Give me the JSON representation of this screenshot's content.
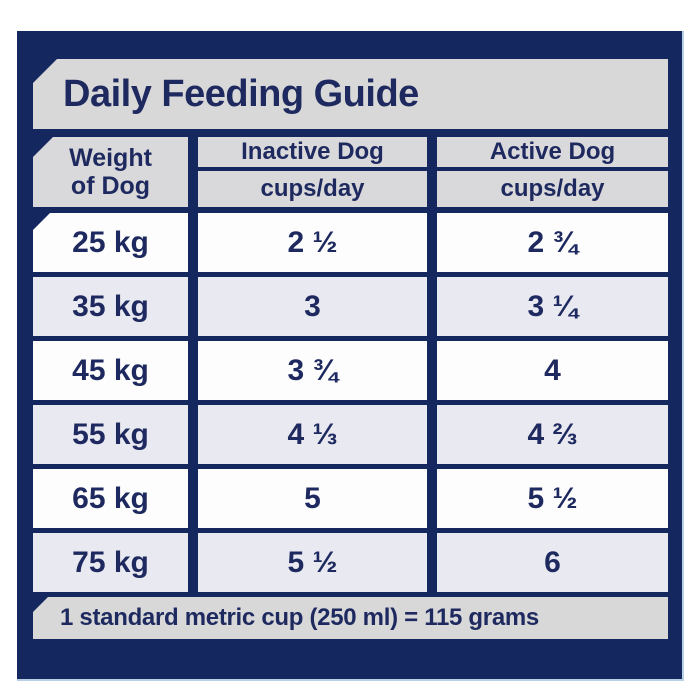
{
  "title": "Daily Feeding Guide",
  "table": {
    "weight_header": {
      "line1": "Weight",
      "line2": "of Dog"
    },
    "columns": [
      {
        "label": "Inactive Dog",
        "sublabel": "cups/day"
      },
      {
        "label": "Active Dog",
        "sublabel": "cups/day"
      }
    ],
    "rows": [
      {
        "weight": "25 kg",
        "inactive": "2 ½",
        "active": "2 ¾"
      },
      {
        "weight": "35 kg",
        "inactive": "3",
        "active": "3 ¼"
      },
      {
        "weight": "45 kg",
        "inactive": "3 ¾",
        "active": "4"
      },
      {
        "weight": "55 kg",
        "inactive": "4 ⅓",
        "active": "4 ⅔"
      },
      {
        "weight": "65 kg",
        "inactive": "5",
        "active": "5 ½"
      },
      {
        "weight": "75 kg",
        "inactive": "5 ½",
        "active": "6"
      }
    ]
  },
  "footnote": "1 standard metric cup (250 ml) = 115 grams",
  "colors": {
    "panel_navy": "#15275f",
    "bar_gray": "#d8d8d8",
    "header_gray": "#d9d9db",
    "row_gray": "#e9e9f1",
    "row_white": "#fdfdfe",
    "text_navy": "#1e2a5f",
    "edge_highlight": "#b9cfe6"
  },
  "chart_data": {
    "type": "table",
    "title": "Daily Feeding Guide",
    "columns": [
      "Weight of Dog",
      "Inactive Dog (cups/day)",
      "Active Dog (cups/day)"
    ],
    "categories": [
      "25 kg",
      "35 kg",
      "45 kg",
      "55 kg",
      "65 kg",
      "75 kg"
    ],
    "series": [
      {
        "name": "Inactive Dog cups/day",
        "values": [
          2.5,
          3,
          3.75,
          4.333,
          5,
          5.5
        ]
      },
      {
        "name": "Active Dog cups/day",
        "values": [
          2.75,
          3.25,
          4,
          4.667,
          5.5,
          6
        ]
      }
    ],
    "footnote": "1 standard metric cup (250 ml) = 115 grams"
  }
}
